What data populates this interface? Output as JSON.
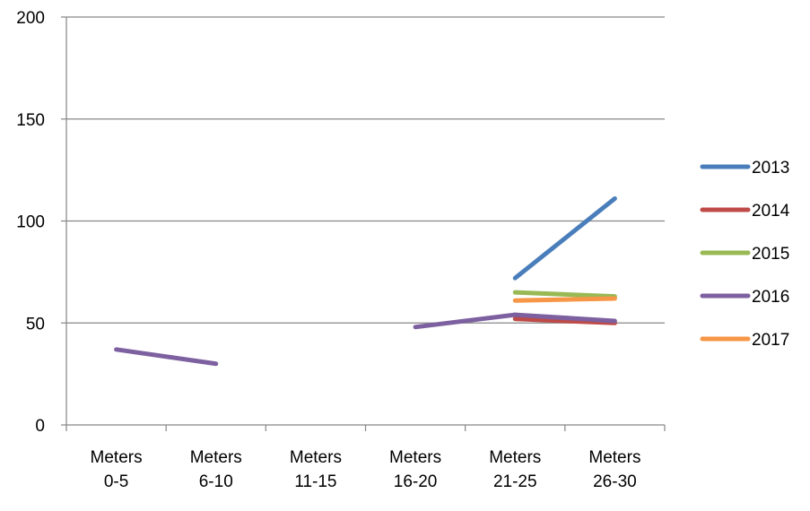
{
  "chart_data": {
    "type": "line",
    "title": "",
    "xlabel": "",
    "ylabel": "",
    "ylim": [
      0,
      200
    ],
    "yticks": [
      0,
      50,
      100,
      150,
      200
    ],
    "grid": true,
    "legend_position": "right",
    "categories": [
      [
        "Meters",
        "0-5"
      ],
      [
        "Meters",
        "6-10"
      ],
      [
        "Meters",
        "11-15"
      ],
      [
        "Meters",
        "16-20"
      ],
      [
        "Meters",
        "21-25"
      ],
      [
        "Meters",
        "26-30"
      ]
    ],
    "series": [
      {
        "name": "2013",
        "color": "#4a7ebb",
        "values": [
          null,
          null,
          null,
          null,
          72,
          111
        ]
      },
      {
        "name": "2014",
        "color": "#be4b48",
        "values": [
          null,
          null,
          null,
          null,
          52,
          50
        ]
      },
      {
        "name": "2015",
        "color": "#98b954",
        "values": [
          null,
          null,
          null,
          null,
          65,
          63
        ]
      },
      {
        "name": "2016",
        "color": "#7d60a0",
        "values": [
          37,
          30,
          null,
          48,
          54,
          51
        ]
      },
      {
        "name": "2017",
        "color": "#f79646",
        "values": [
          null,
          null,
          null,
          null,
          61,
          62
        ]
      }
    ]
  }
}
